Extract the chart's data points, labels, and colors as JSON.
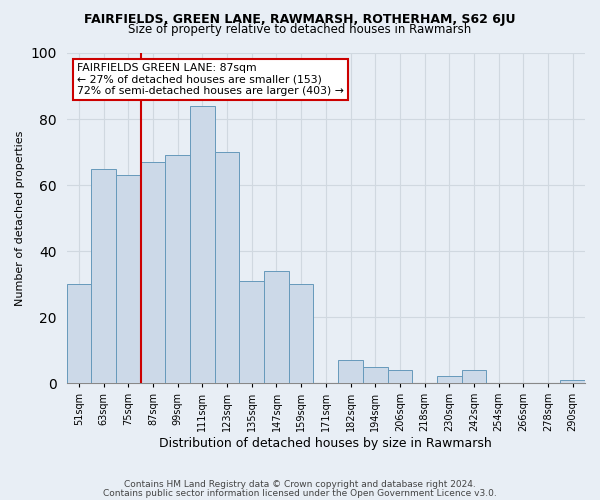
{
  "title": "FAIRFIELDS, GREEN LANE, RAWMARSH, ROTHERHAM, S62 6JU",
  "subtitle": "Size of property relative to detached houses in Rawmarsh",
  "xlabel": "Distribution of detached houses by size in Rawmarsh",
  "ylabel": "Number of detached properties",
  "bin_labels": [
    "51sqm",
    "63sqm",
    "75sqm",
    "87sqm",
    "99sqm",
    "111sqm",
    "123sqm",
    "135sqm",
    "147sqm",
    "159sqm",
    "171sqm",
    "182sqm",
    "194sqm",
    "206sqm",
    "218sqm",
    "230sqm",
    "242sqm",
    "254sqm",
    "266sqm",
    "278sqm",
    "290sqm"
  ],
  "bar_heights": [
    30,
    65,
    63,
    67,
    69,
    84,
    70,
    31,
    34,
    30,
    0,
    7,
    5,
    4,
    0,
    2,
    4,
    0,
    0,
    0,
    1
  ],
  "bar_color": "#ccd9e8",
  "bar_edge_color": "#6699bb",
  "vline_x": 3,
  "vline_color": "#cc0000",
  "ylim": [
    0,
    100
  ],
  "annotation_title": "FAIRFIELDS GREEN LANE: 87sqm",
  "annotation_line1": "← 27% of detached houses are smaller (153)",
  "annotation_line2": "72% of semi-detached houses are larger (403) →",
  "annotation_box_color": "#ffffff",
  "annotation_box_edge": "#cc0000",
  "footer1": "Contains HM Land Registry data © Crown copyright and database right 2024.",
  "footer2": "Contains public sector information licensed under the Open Government Licence v3.0.",
  "background_color": "#e8eef5",
  "grid_color": "#d0d8e0",
  "title_fontsize": 9,
  "subtitle_fontsize": 8.5,
  "ylabel_fontsize": 8,
  "xlabel_fontsize": 9,
  "tick_fontsize": 7,
  "footer_fontsize": 6.5
}
